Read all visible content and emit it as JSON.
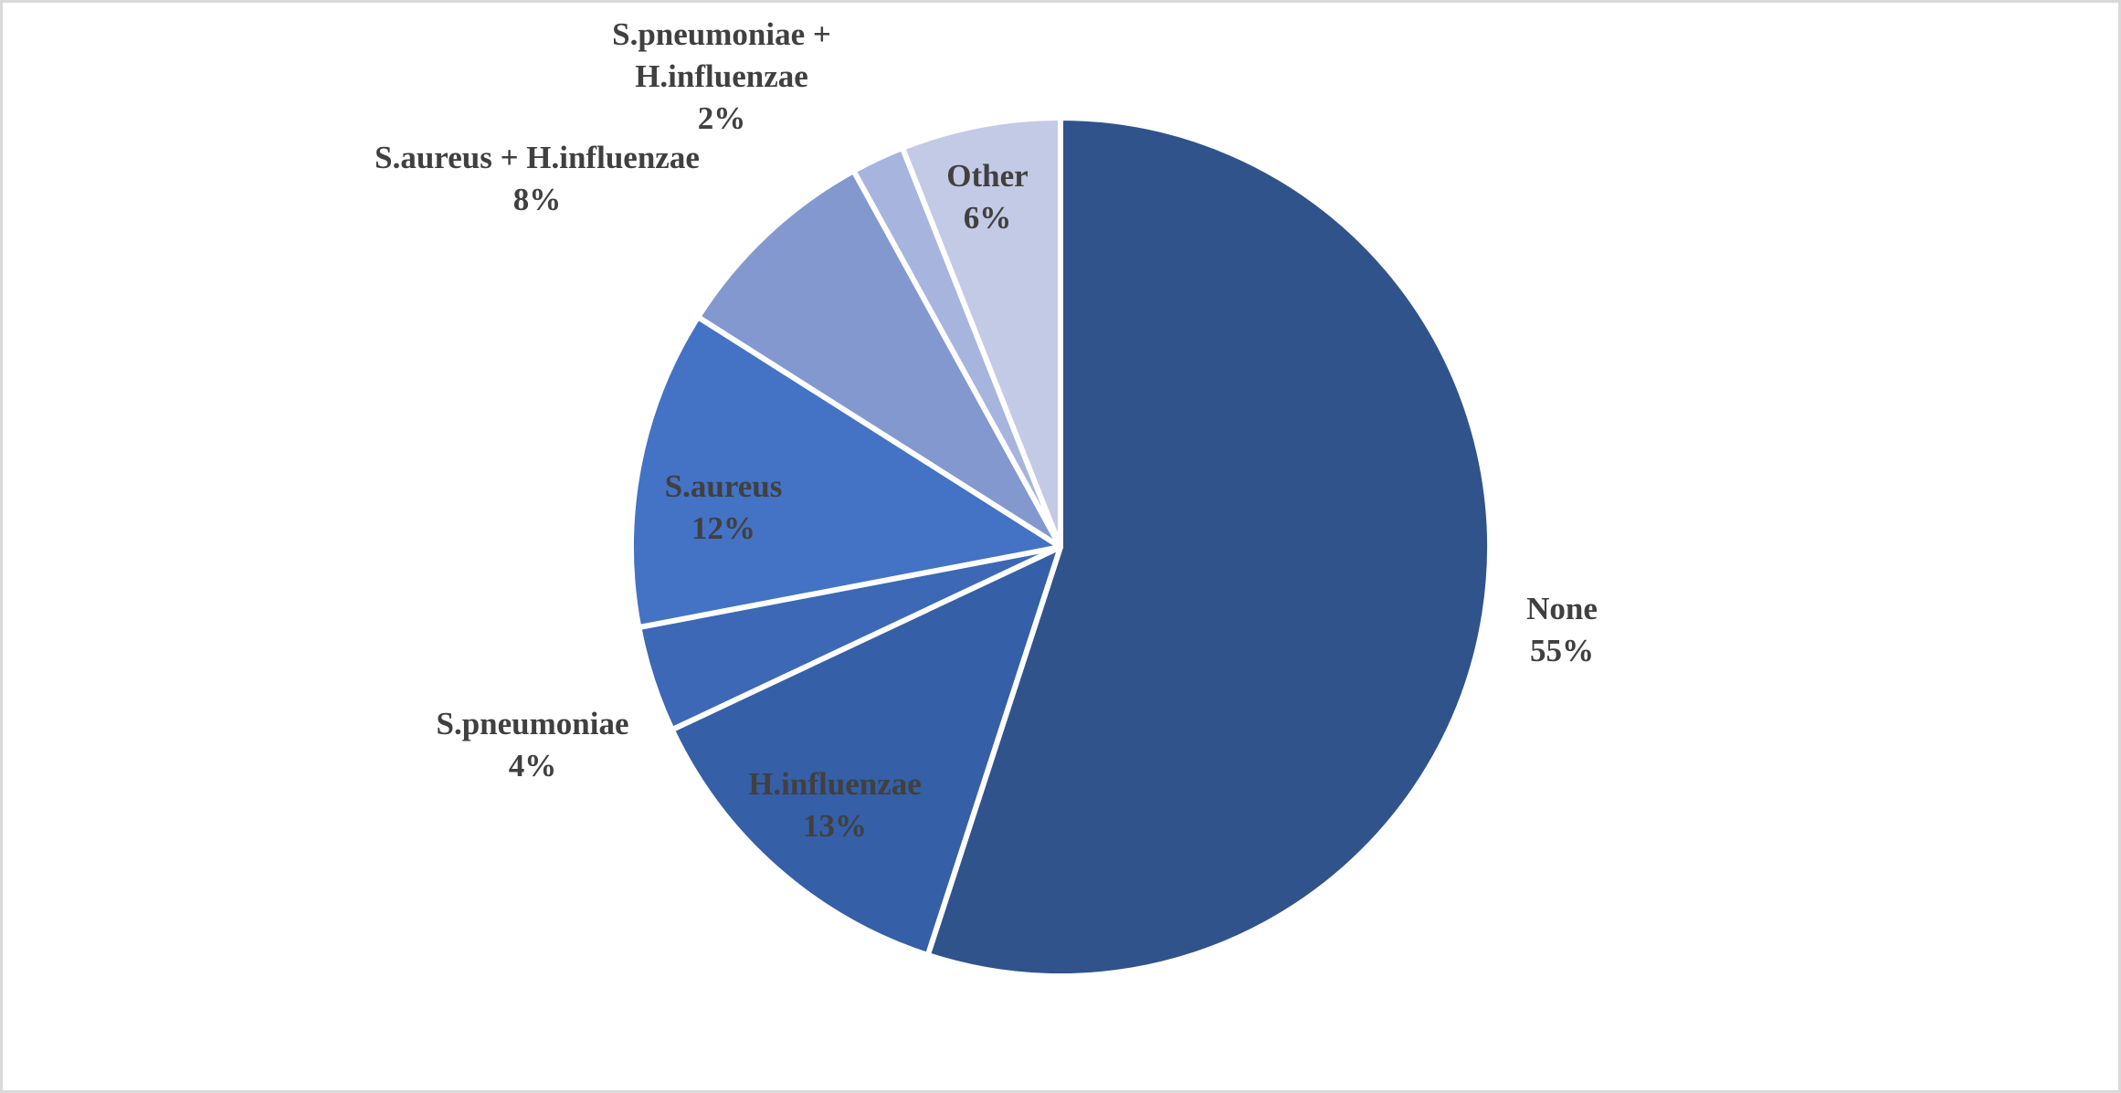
{
  "chart_data": {
    "type": "pie",
    "title": "",
    "start_angle_deg": 0,
    "direction": "clockwise",
    "slices": [
      {
        "label": "None",
        "value": 55,
        "percent_text": "55%",
        "color": "#30538c"
      },
      {
        "label": "H.influenzae",
        "value": 13,
        "percent_text": "13%",
        "color": "#355fa6"
      },
      {
        "label": "S.pneumoniae",
        "value": 4,
        "percent_text": "4%",
        "color": "#3c68b5"
      },
      {
        "label": "S.aureus",
        "value": 12,
        "percent_text": "12%",
        "color": "#4472c4"
      },
      {
        "label": "S.aureus + H.influenzae",
        "value": 8,
        "percent_text": "8%",
        "color": "#8298cf"
      },
      {
        "label": "S.pneumoniae + H.influenzae",
        "value": 2,
        "percent_text": "2%",
        "color": "#a6b4de"
      },
      {
        "label": "Other",
        "value": 6,
        "percent_text": "6%",
        "color": "#c3cae6"
      }
    ]
  }
}
